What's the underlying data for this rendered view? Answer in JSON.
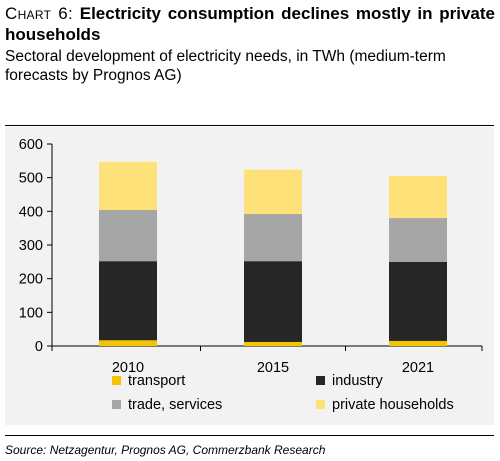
{
  "header": {
    "chart_label": "Chart 6:",
    "title": "Electricity consumption declines mostly in private households",
    "subtitle": "Sectoral development of electricity needs, in TWh (medium-term forecasts by Prognos  AG)"
  },
  "source": "Source: Netzagentur, Prognos AG, Commerzbank Research",
  "colors": {
    "transport": "#f5c400",
    "industry": "#262626",
    "trade": "#a6a6a6",
    "households": "#ffe17a",
    "panel": "#f2f2f2"
  },
  "chart_data": {
    "type": "bar",
    "stacked": true,
    "categories": [
      "2010",
      "2015",
      "2021"
    ],
    "series": [
      {
        "name": "transport",
        "values": [
          17,
          12,
          15
        ]
      },
      {
        "name": "industry",
        "values": [
          235,
          240,
          235
        ]
      },
      {
        "name": "trade, services",
        "values": [
          152,
          140,
          130
        ]
      },
      {
        "name": "private households",
        "values": [
          143,
          132,
          125
        ]
      }
    ],
    "ylim": [
      0,
      600
    ],
    "yticks": [
      0,
      100,
      200,
      300,
      400,
      500,
      600
    ],
    "ylabel": "",
    "xlabel": "",
    "legend": "bottom",
    "grid": false
  }
}
